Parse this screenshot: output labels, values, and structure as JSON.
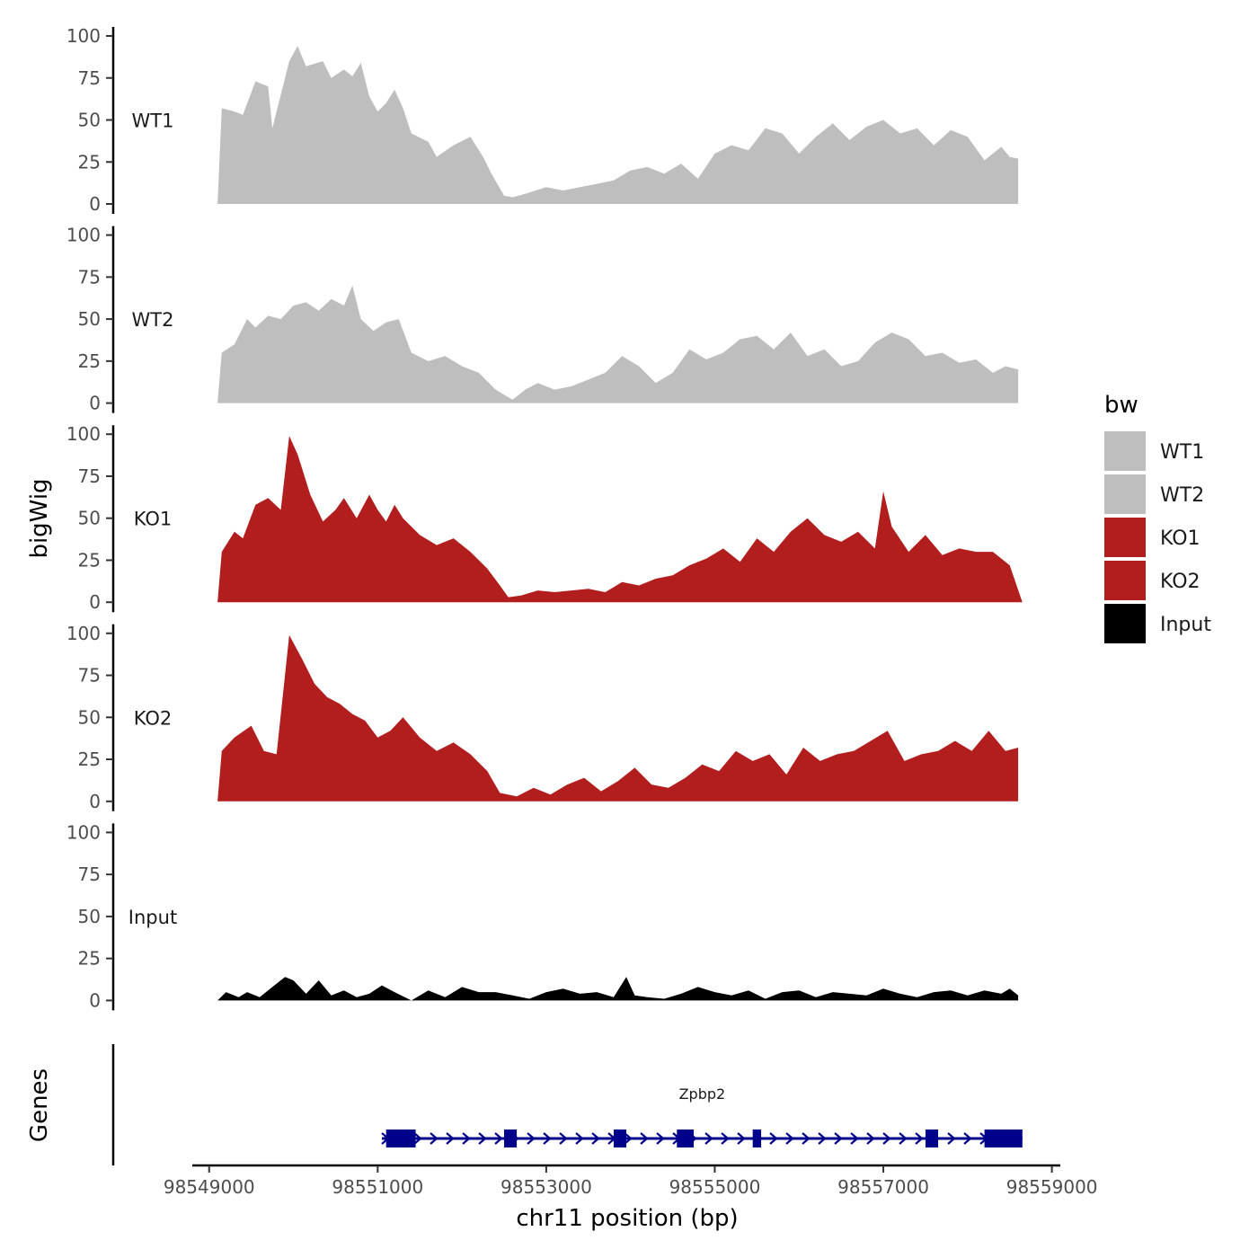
{
  "chart_data": {
    "type": "area",
    "ylabel": "bigWig",
    "xlabel": "chr11 position (bp)",
    "genes_label": "Genes",
    "xlim": [
      98548800,
      98559100
    ],
    "ylim": [
      0,
      100
    ],
    "y_ticks": [
      "0",
      "25",
      "50",
      "75",
      "100"
    ],
    "x_ticks": [
      {
        "value": 98549000,
        "label": "98549000"
      },
      {
        "value": 98551000,
        "label": "98551000"
      },
      {
        "value": 98553000,
        "label": "98553000"
      },
      {
        "value": 98555000,
        "label": "98555000"
      },
      {
        "value": 98557000,
        "label": "98557000"
      },
      {
        "value": 98559000,
        "label": "98559000"
      }
    ],
    "legend": {
      "title": "bw",
      "entries": [
        {
          "label": "WT1",
          "color": "#bebebe"
        },
        {
          "label": "WT2",
          "color": "#bebebe"
        },
        {
          "label": "KO1",
          "color": "#b21e1e"
        },
        {
          "label": "KO2",
          "color": "#b21e1e"
        },
        {
          "label": "Input",
          "color": "#000000"
        }
      ]
    },
    "tracks": [
      {
        "name": "WT1",
        "color": "#bebebe",
        "x": [
          98549100,
          98549150,
          98549300,
          98549400,
          98549550,
          98549700,
          98549750,
          98549950,
          98550050,
          98550150,
          98550350,
          98550450,
          98550600,
          98550700,
          98550800,
          98550900,
          98551000,
          98551100,
          98551200,
          98551300,
          98551400,
          98551600,
          98551700,
          98551900,
          98552100,
          98552250,
          98552350,
          98552500,
          98552600,
          98552750,
          98553000,
          98553200,
          98553400,
          98553600,
          98553800,
          98554000,
          98554200,
          98554400,
          98554600,
          98554800,
          98555000,
          98555200,
          98555400,
          98555600,
          98555800,
          98556000,
          98556200,
          98556400,
          98556600,
          98556800,
          98557000,
          98557200,
          98557400,
          98557600,
          98557800,
          98558000,
          98558200,
          98558400,
          98558500,
          98558600
        ],
        "y": [
          0,
          57,
          55,
          53,
          73,
          70,
          45,
          85,
          94,
          82,
          85,
          75,
          80,
          76,
          84,
          64,
          55,
          60,
          68,
          57,
          42,
          37,
          28,
          35,
          40,
          28,
          18,
          5,
          4,
          6,
          10,
          8,
          10,
          12,
          14,
          20,
          22,
          18,
          24,
          15,
          30,
          35,
          32,
          45,
          42,
          30,
          40,
          48,
          38,
          46,
          50,
          42,
          45,
          35,
          44,
          40,
          26,
          34,
          28,
          27
        ]
      },
      {
        "name": "WT2",
        "color": "#bebebe",
        "x": [
          98549100,
          98549150,
          98549300,
          98549450,
          98549550,
          98549700,
          98549850,
          98550000,
          98550150,
          98550300,
          98550450,
          98550600,
          98550700,
          98550800,
          98550950,
          98551100,
          98551250,
          98551400,
          98551600,
          98551800,
          98552000,
          98552200,
          98552400,
          98552600,
          98552750,
          98552900,
          98553100,
          98553300,
          98553500,
          98553700,
          98553900,
          98554100,
          98554300,
          98554500,
          98554700,
          98554900,
          98555100,
          98555300,
          98555500,
          98555700,
          98555900,
          98556100,
          98556300,
          98556500,
          98556700,
          98556900,
          98557100,
          98557300,
          98557500,
          98557700,
          98557900,
          98558100,
          98558300,
          98558450,
          98558600
        ],
        "y": [
          0,
          30,
          35,
          50,
          45,
          52,
          50,
          58,
          60,
          55,
          62,
          58,
          70,
          50,
          43,
          48,
          50,
          30,
          25,
          28,
          22,
          18,
          8,
          2,
          8,
          12,
          8,
          10,
          14,
          18,
          28,
          22,
          12,
          18,
          32,
          26,
          30,
          38,
          40,
          32,
          42,
          28,
          32,
          22,
          25,
          36,
          42,
          38,
          28,
          30,
          24,
          26,
          18,
          22,
          20
        ]
      },
      {
        "name": "KO1",
        "color": "#b21e1e",
        "x": [
          98549100,
          98549150,
          98549300,
          98549400,
          98549550,
          98549700,
          98549850,
          98549950,
          98550050,
          98550200,
          98550350,
          98550500,
          98550600,
          98550750,
          98550900,
          98551000,
          98551100,
          98551200,
          98551300,
          98551500,
          98551700,
          98551900,
          98552100,
          98552300,
          98552450,
          98552550,
          98552700,
          98552900,
          98553100,
          98553300,
          98553500,
          98553700,
          98553900,
          98554100,
          98554300,
          98554500,
          98554700,
          98554900,
          98555100,
          98555300,
          98555500,
          98555700,
          98555900,
          98556100,
          98556300,
          98556500,
          98556700,
          98556900,
          98557000,
          98557100,
          98557300,
          98557500,
          98557700,
          98557900,
          98558100,
          98558300,
          98558500,
          98558650
        ],
        "y": [
          0,
          30,
          42,
          38,
          58,
          62,
          55,
          99,
          88,
          64,
          48,
          55,
          62,
          50,
          64,
          55,
          48,
          58,
          50,
          40,
          34,
          38,
          30,
          20,
          10,
          3,
          4,
          7,
          6,
          7,
          8,
          6,
          12,
          10,
          14,
          16,
          22,
          26,
          32,
          24,
          38,
          30,
          42,
          50,
          40,
          36,
          42,
          32,
          66,
          45,
          30,
          40,
          28,
          32,
          30,
          30,
          22,
          0
        ]
      },
      {
        "name": "KO2",
        "color": "#b21e1e",
        "x": [
          98549100,
          98549150,
          98549300,
          98549500,
          98549650,
          98549800,
          98549950,
          98550100,
          98550250,
          98550400,
          98550550,
          98550700,
          98550850,
          98551000,
          98551150,
          98551300,
          98551500,
          98551700,
          98551900,
          98552100,
          98552300,
          98552450,
          98552650,
          98552850,
          98553050,
          98553250,
          98553450,
          98553650,
          98553850,
          98554050,
          98554250,
          98554450,
          98554650,
          98554850,
          98555050,
          98555250,
          98555450,
          98555650,
          98555850,
          98556050,
          98556250,
          98556450,
          98556650,
          98556850,
          98557050,
          98557250,
          98557450,
          98557650,
          98557850,
          98558050,
          98558250,
          98558450,
          98558600
        ],
        "y": [
          0,
          30,
          38,
          45,
          30,
          28,
          99,
          85,
          70,
          62,
          58,
          52,
          48,
          38,
          42,
          50,
          38,
          30,
          35,
          28,
          18,
          5,
          3,
          8,
          4,
          10,
          14,
          6,
          12,
          20,
          10,
          8,
          14,
          22,
          18,
          30,
          24,
          28,
          16,
          32,
          24,
          28,
          30,
          36,
          42,
          24,
          28,
          30,
          36,
          30,
          42,
          30,
          32
        ]
      },
      {
        "name": "Input",
        "color": "#000000",
        "x": [
          98549100,
          98549200,
          98549350,
          98549450,
          98549600,
          98549750,
          98549900,
          98550000,
          98550150,
          98550300,
          98550450,
          98550600,
          98550750,
          98550900,
          98551050,
          98551200,
          98551400,
          98551600,
          98551800,
          98552000,
          98552200,
          98552400,
          98552600,
          98552800,
          98553000,
          98553200,
          98553400,
          98553600,
          98553800,
          98553950,
          98554050,
          98554200,
          98554400,
          98554600,
          98554800,
          98555000,
          98555200,
          98555400,
          98555600,
          98555800,
          98556000,
          98556200,
          98556400,
          98556600,
          98556800,
          98557000,
          98557200,
          98557400,
          98557600,
          98557800,
          98558000,
          98558200,
          98558400,
          98558500,
          98558600
        ],
        "y": [
          0,
          5,
          2,
          5,
          2,
          8,
          14,
          12,
          4,
          12,
          3,
          6,
          2,
          4,
          9,
          5,
          0,
          6,
          2,
          8,
          5,
          5,
          3,
          1,
          5,
          7,
          4,
          5,
          2,
          14,
          3,
          2,
          1,
          4,
          8,
          5,
          3,
          6,
          1,
          5,
          6,
          2,
          5,
          4,
          3,
          7,
          4,
          2,
          5,
          6,
          3,
          6,
          4,
          7,
          3
        ]
      }
    ],
    "gene": {
      "name": "Zpbp2",
      "color": "#00008b",
      "start": 98551050,
      "end": 98558650,
      "strand": "+",
      "exons": [
        [
          98551100,
          98551450
        ],
        [
          98552500,
          98552650
        ],
        [
          98553800,
          98553950
        ],
        [
          98554550,
          98554750
        ],
        [
          98555450,
          98555550
        ],
        [
          98557500,
          98557650
        ],
        [
          98558200,
          98558650
        ]
      ]
    }
  }
}
